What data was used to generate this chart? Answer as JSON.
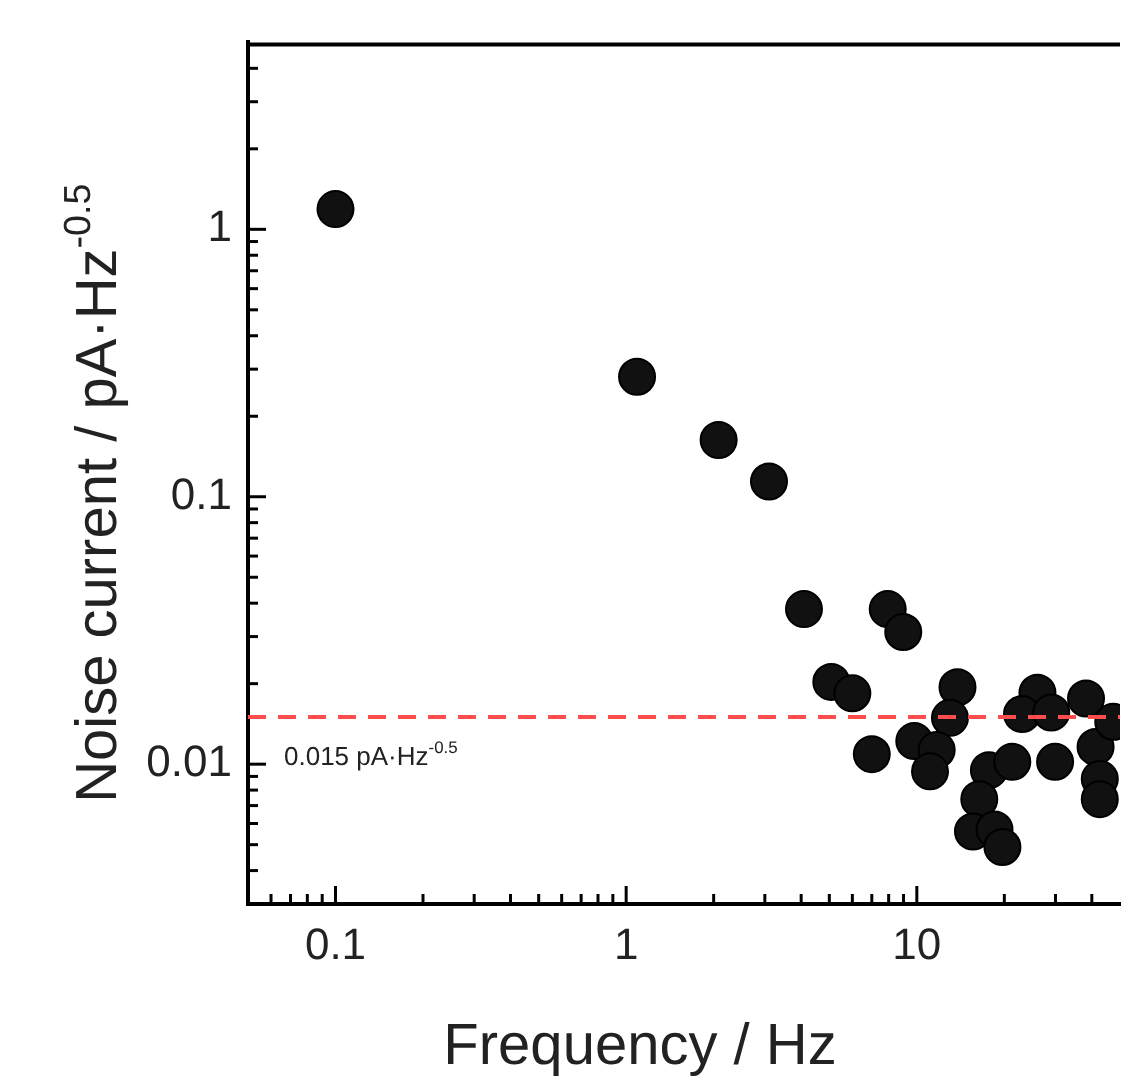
{
  "chart_data": {
    "type": "scatter",
    "xlabel": "Frequency / Hz",
    "ylabel": "Noise current / pA·Hz$^{-0.5}$",
    "log": "xy",
    "grid": false,
    "legend": false,
    "marker": "circle",
    "xlim": [
      0.05,
      50
    ],
    "ylim": [
      0.003,
      5
    ],
    "xticks": [
      {
        "value": 0.06,
        "label": null
      },
      {
        "value": 0.07,
        "label": null
      },
      {
        "value": 0.08,
        "label": null
      },
      {
        "value": 0.09,
        "label": null
      },
      0.1,
      {
        "value": 0.2,
        "label": null
      },
      {
        "value": 0.3,
        "label": null
      },
      {
        "value": 0.4,
        "label": null
      },
      {
        "value": 0.5,
        "label": null
      },
      {
        "value": 0.6,
        "label": null
      },
      {
        "value": 0.7,
        "label": null
      },
      {
        "value": 0.8,
        "label": null
      },
      {
        "value": 0.9,
        "label": null
      },
      1,
      {
        "value": 2,
        "label": null
      },
      {
        "value": 3,
        "label": null
      },
      {
        "value": 4,
        "label": null
      },
      {
        "value": 5,
        "label": null
      },
      {
        "value": 6,
        "label": null
      },
      {
        "value": 7,
        "label": null
      },
      {
        "value": 8,
        "label": null
      },
      {
        "value": 9,
        "label": null
      },
      10,
      {
        "value": 20,
        "label": null
      },
      {
        "value": 30,
        "label": null
      },
      {
        "value": 40,
        "label": null
      }
    ],
    "yticks": [
      {
        "value": 0.004,
        "label": null
      },
      {
        "value": 0.005,
        "label": null
      },
      {
        "value": 0.006,
        "label": null
      },
      {
        "value": 0.007,
        "label": null
      },
      {
        "value": 0.008,
        "label": null
      },
      {
        "value": 0.009,
        "label": null
      },
      0.01,
      {
        "value": 0.02,
        "label": null
      },
      {
        "value": 0.03,
        "label": null
      },
      {
        "value": 0.04,
        "label": null
      },
      {
        "value": 0.05,
        "label": null
      },
      {
        "value": 0.06,
        "label": null
      },
      {
        "value": 0.07,
        "label": null
      },
      {
        "value": 0.08,
        "label": null
      },
      {
        "value": 0.09,
        "label": null
      },
      0.1,
      {
        "value": 0.2,
        "label": null
      },
      {
        "value": 0.3,
        "label": null
      },
      {
        "value": 0.4,
        "label": null
      },
      {
        "value": 0.5,
        "label": null
      },
      {
        "value": 0.6,
        "label": null
      },
      {
        "value": 0.7,
        "label": null
      },
      {
        "value": 0.8,
        "label": null
      },
      {
        "value": 0.9,
        "label": null
      },
      1,
      {
        "value": 2,
        "label": null
      },
      {
        "value": 3,
        "label": null
      },
      {
        "value": 4,
        "label": null
      }
    ],
    "ref_lines": [
      {
        "axis": "y",
        "value": 0.015,
        "label": "0.015 pA·Hz$^{-0.5}$",
        "color": "#ff4c4c",
        "line_style": "dashed"
      }
    ],
    "series": [
      {
        "color": "#111111",
        "x": [
          0.1,
          1.09,
          2.08,
          3.1,
          4.09,
          7.94,
          8.98,
          5.08,
          6.0,
          7.0,
          13.8,
          13.0,
          9.8,
          11.7,
          11.1,
          17.7,
          21.3,
          16.4,
          15.6,
          18.5,
          19.7,
          26.0,
          23.0,
          29.0,
          38.2,
          29.9,
          41.2,
          42.6,
          42.6,
          47.4
        ],
        "values": [
          1.19,
          0.281,
          0.163,
          0.114,
          0.038,
          0.038,
          0.0312,
          0.0203,
          0.0184,
          0.0109,
          0.0194,
          0.0149,
          0.0122,
          0.0113,
          0.0094,
          0.0095,
          0.0102,
          0.0074,
          0.0056,
          0.0057,
          0.0049,
          0.0185,
          0.0154,
          0.0156,
          0.0176,
          0.0102,
          0.0116,
          0.0088,
          0.0074,
          0.0144
        ]
      }
    ]
  }
}
